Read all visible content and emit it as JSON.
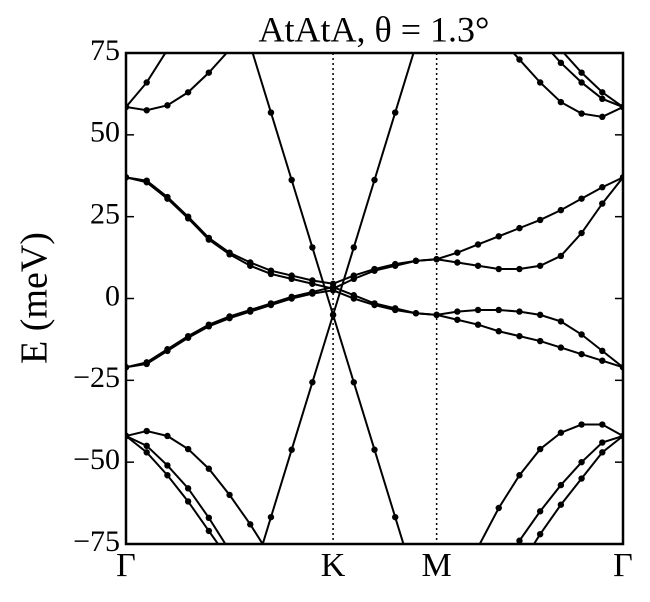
{
  "chart_data": {
    "type": "line",
    "title": "AtAtA, θ = 1.3°",
    "y_label": "E (meV)",
    "x": [
      0,
      0.1,
      0.2,
      0.3,
      0.4,
      0.5,
      0.6,
      0.7,
      0.8,
      0.9,
      1.0,
      1.1,
      1.2,
      1.3,
      1.4,
      1.5,
      1.6,
      1.7,
      1.8,
      1.9,
      2.0,
      2.1,
      2.2,
      2.3,
      2.4
    ],
    "xlim": [
      0,
      2.4
    ],
    "xticks": [
      {
        "value": 0,
        "label": "Γ"
      },
      {
        "value": 1.0,
        "label": "K"
      },
      {
        "value": 1.5,
        "label": "M"
      },
      {
        "value": 2.4,
        "label": "Γ"
      }
    ],
    "ylim": [
      -75,
      75
    ],
    "yticks": [
      {
        "value": -75,
        "label": "−75"
      },
      {
        "value": -50,
        "label": "−50"
      },
      {
        "value": -25,
        "label": "−25"
      },
      0,
      25,
      50,
      75
    ],
    "x_grid": true,
    "series": [
      {
        "color": "#000000",
        "values": [
          37,
          36,
          31,
          25,
          18.5,
          14,
          11,
          8.5,
          7,
          5.5,
          4.5,
          7,
          9,
          10.5,
          11.5,
          12,
          14,
          16.5,
          19,
          21.5,
          24,
          27,
          30.5,
          34,
          37
        ]
      },
      {
        "color": "#000000",
        "values": [
          37,
          35.5,
          30.5,
          24.5,
          18,
          13.5,
          10,
          7.5,
          6,
          4.5,
          3,
          6,
          8.5,
          10,
          11.5,
          12,
          11,
          10,
          9,
          9,
          10,
          13,
          20,
          29,
          37
        ]
      },
      {
        "color": "#000000",
        "values": [
          -21,
          -20,
          -16,
          -12,
          -8.5,
          -6,
          -4,
          -2,
          0,
          1.5,
          2.5,
          0,
          -2,
          -3.5,
          -4.5,
          -5,
          -4,
          -3.5,
          -3.5,
          -4,
          -5,
          -7,
          -11,
          -16,
          -21
        ]
      },
      {
        "color": "#000000",
        "values": [
          -21,
          -19.5,
          -15.5,
          -11.5,
          -8,
          -5.5,
          -3.5,
          -1.5,
          0.5,
          2,
          3.5,
          1,
          -1.5,
          -3,
          -4.5,
          -5,
          -6.5,
          -8,
          -10,
          -11.5,
          -13,
          -15,
          -17,
          -19,
          -21
        ]
      },
      {
        "color": "#000000",
        "values": [
          null,
          null,
          null,
          null,
          null,
          null,
          77.4,
          56.8,
          36.2,
          15.6,
          -5,
          -25.6,
          -46.2,
          -66.8,
          -87.4,
          null,
          null,
          null,
          null,
          null,
          null,
          null,
          null,
          null,
          null
        ]
      },
      {
        "color": "#000000",
        "values": [
          null,
          null,
          null,
          null,
          null,
          null,
          -87.4,
          -66.8,
          -46.2,
          -25.6,
          -5,
          15.6,
          36.2,
          56.8,
          77.4,
          null,
          null,
          null,
          null,
          null,
          null,
          null,
          null,
          null,
          null
        ]
      },
      {
        "color": "#000000",
        "values": [
          58.5,
          57.5,
          59,
          63,
          69,
          76,
          null,
          null,
          null,
          null,
          null,
          null,
          null,
          null,
          null,
          null,
          null,
          null,
          80,
          73,
          66,
          60,
          56.5,
          55.5,
          58.5
        ]
      },
      {
        "color": "#000000",
        "values": [
          58.5,
          66,
          76,
          null,
          null,
          null,
          null,
          null,
          null,
          null,
          null,
          null,
          null,
          null,
          null,
          null,
          null,
          null,
          null,
          null,
          null,
          76,
          69,
          63,
          58.5
        ]
      },
      {
        "color": "#000000",
        "values": [
          null,
          null,
          null,
          null,
          null,
          null,
          null,
          null,
          null,
          null,
          null,
          null,
          null,
          null,
          null,
          null,
          null,
          null,
          null,
          null,
          79,
          72,
          66,
          61,
          58.5
        ]
      },
      {
        "color": "#000000",
        "values": [
          -42,
          -40.5,
          -42,
          -46,
          -52,
          -60,
          -69,
          -79,
          null,
          null,
          null,
          null,
          null,
          null,
          null,
          null,
          null,
          -76,
          -64,
          -54,
          -46,
          -41,
          -38.5,
          -38.5,
          -42
        ]
      },
      {
        "color": "#000000",
        "values": [
          -42,
          -47,
          -54,
          -62,
          -71,
          -80,
          null,
          null,
          null,
          null,
          null,
          null,
          null,
          null,
          null,
          null,
          null,
          null,
          -84,
          -74,
          -65,
          -57,
          -50,
          -44,
          -42
        ]
      },
      {
        "color": "#000000",
        "values": [
          -42,
          -45,
          -51,
          -58,
          -67,
          -77,
          null,
          null,
          null,
          null,
          null,
          null,
          null,
          null,
          null,
          null,
          null,
          null,
          null,
          -82,
          -72,
          -63,
          -55,
          -47,
          -42
        ]
      }
    ]
  }
}
